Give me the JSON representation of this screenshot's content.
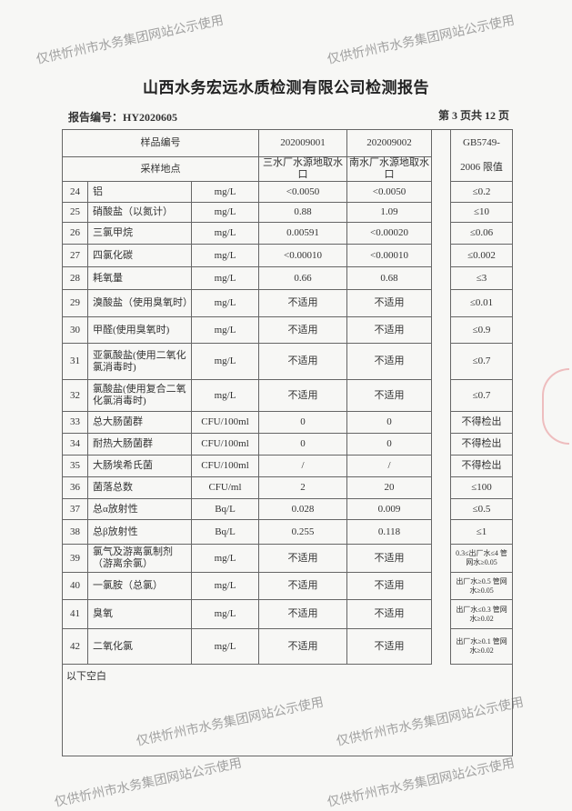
{
  "title": "山西水务宏远水质检测有限公司检测报告",
  "report_number": "报告编号：HY2020605",
  "page_info": "第 3 页共 12 页",
  "table": {
    "sample_id_label": "样品编号",
    "sample_ids": [
      "202009001",
      "202009002"
    ],
    "location_label": "采样地点",
    "locations": [
      "三水厂水源地取水口",
      "南水厂水源地取水口"
    ],
    "standard_label_1": "GB5749-",
    "standard_label_2": "2006 限值",
    "rows": [
      {
        "no": "24",
        "item": "铝",
        "unit": "mg/L",
        "v1": "<0.0050",
        "v2": "<0.0050",
        "limit": "≤0.2"
      },
      {
        "no": "25",
        "item": "硝酸盐（以氮计）",
        "unit": "mg/L",
        "v1": "0.88",
        "v2": "1.09",
        "limit": "≤10"
      },
      {
        "no": "26",
        "item": "三氯甲烷",
        "unit": "mg/L",
        "v1": "0.00591",
        "v2": "<0.00020",
        "limit": "≤0.06"
      },
      {
        "no": "27",
        "item": "四氯化碳",
        "unit": "mg/L",
        "v1": "<0.00010",
        "v2": "<0.00010",
        "limit": "≤0.002"
      },
      {
        "no": "28",
        "item": "耗氧量",
        "unit": "mg/L",
        "v1": "0.66",
        "v2": "0.68",
        "limit": "≤3"
      },
      {
        "no": "29",
        "item": "溴酸盐（使用臭氧时）",
        "unit": "mg/L",
        "v1": "不适用",
        "v2": "不适用",
        "limit": "≤0.01"
      },
      {
        "no": "30",
        "item": "甲醛(使用臭氧时)",
        "unit": "mg/L",
        "v1": "不适用",
        "v2": "不适用",
        "limit": "≤0.9"
      },
      {
        "no": "31",
        "item": "亚氯酸盐(使用二氧化氯消毒时)",
        "unit": "mg/L",
        "v1": "不适用",
        "v2": "不适用",
        "limit": "≤0.7"
      },
      {
        "no": "32",
        "item": "氯酸盐(使用复合二氧化氯消毒时)",
        "unit": "mg/L",
        "v1": "不适用",
        "v2": "不适用",
        "limit": "≤0.7"
      },
      {
        "no": "33",
        "item": "总大肠菌群",
        "unit": "CFU/100ml",
        "v1": "0",
        "v2": "0",
        "limit": "不得检出"
      },
      {
        "no": "34",
        "item": "耐热大肠菌群",
        "unit": "CFU/100ml",
        "v1": "0",
        "v2": "0",
        "limit": "不得检出"
      },
      {
        "no": "35",
        "item": "大肠埃希氏菌",
        "unit": "CFU/100ml",
        "v1": "/",
        "v2": "/",
        "limit": "不得检出"
      },
      {
        "no": "36",
        "item": "菌落总数",
        "unit": "CFU/ml",
        "v1": "2",
        "v2": "20",
        "limit": "≤100"
      },
      {
        "no": "37",
        "item": "总α放射性",
        "unit": "Bq/L",
        "v1": "0.028",
        "v2": "0.009",
        "limit": "≤0.5"
      },
      {
        "no": "38",
        "item": "总β放射性",
        "unit": "Bq/L",
        "v1": "0.255",
        "v2": "0.118",
        "limit": "≤1"
      },
      {
        "no": "39",
        "item": "氯气及游离氯制剂（游离余氯）",
        "unit": "mg/L",
        "v1": "不适用",
        "v2": "不适用",
        "limit": "0.3≤出厂水≤4 管网水≥0.05"
      },
      {
        "no": "40",
        "item": "一氯胺（总氯）",
        "unit": "mg/L",
        "v1": "不适用",
        "v2": "不适用",
        "limit": "出厂水≥0.5 管网水≥0.05"
      },
      {
        "no": "41",
        "item": "臭氧",
        "unit": "mg/L",
        "v1": "不适用",
        "v2": "不适用",
        "limit": "出厂水≤0.3 管网水≥0.02"
      },
      {
        "no": "42",
        "item": "二氧化氯",
        "unit": "mg/L",
        "v1": "不适用",
        "v2": "不适用",
        "limit": "出厂水≥0.1 管网水≥0.02"
      }
    ],
    "blank_note": "以下空白"
  },
  "watermark": "仅供忻州市水务集团网站公示使用",
  "stamp_color": "#dc505a"
}
